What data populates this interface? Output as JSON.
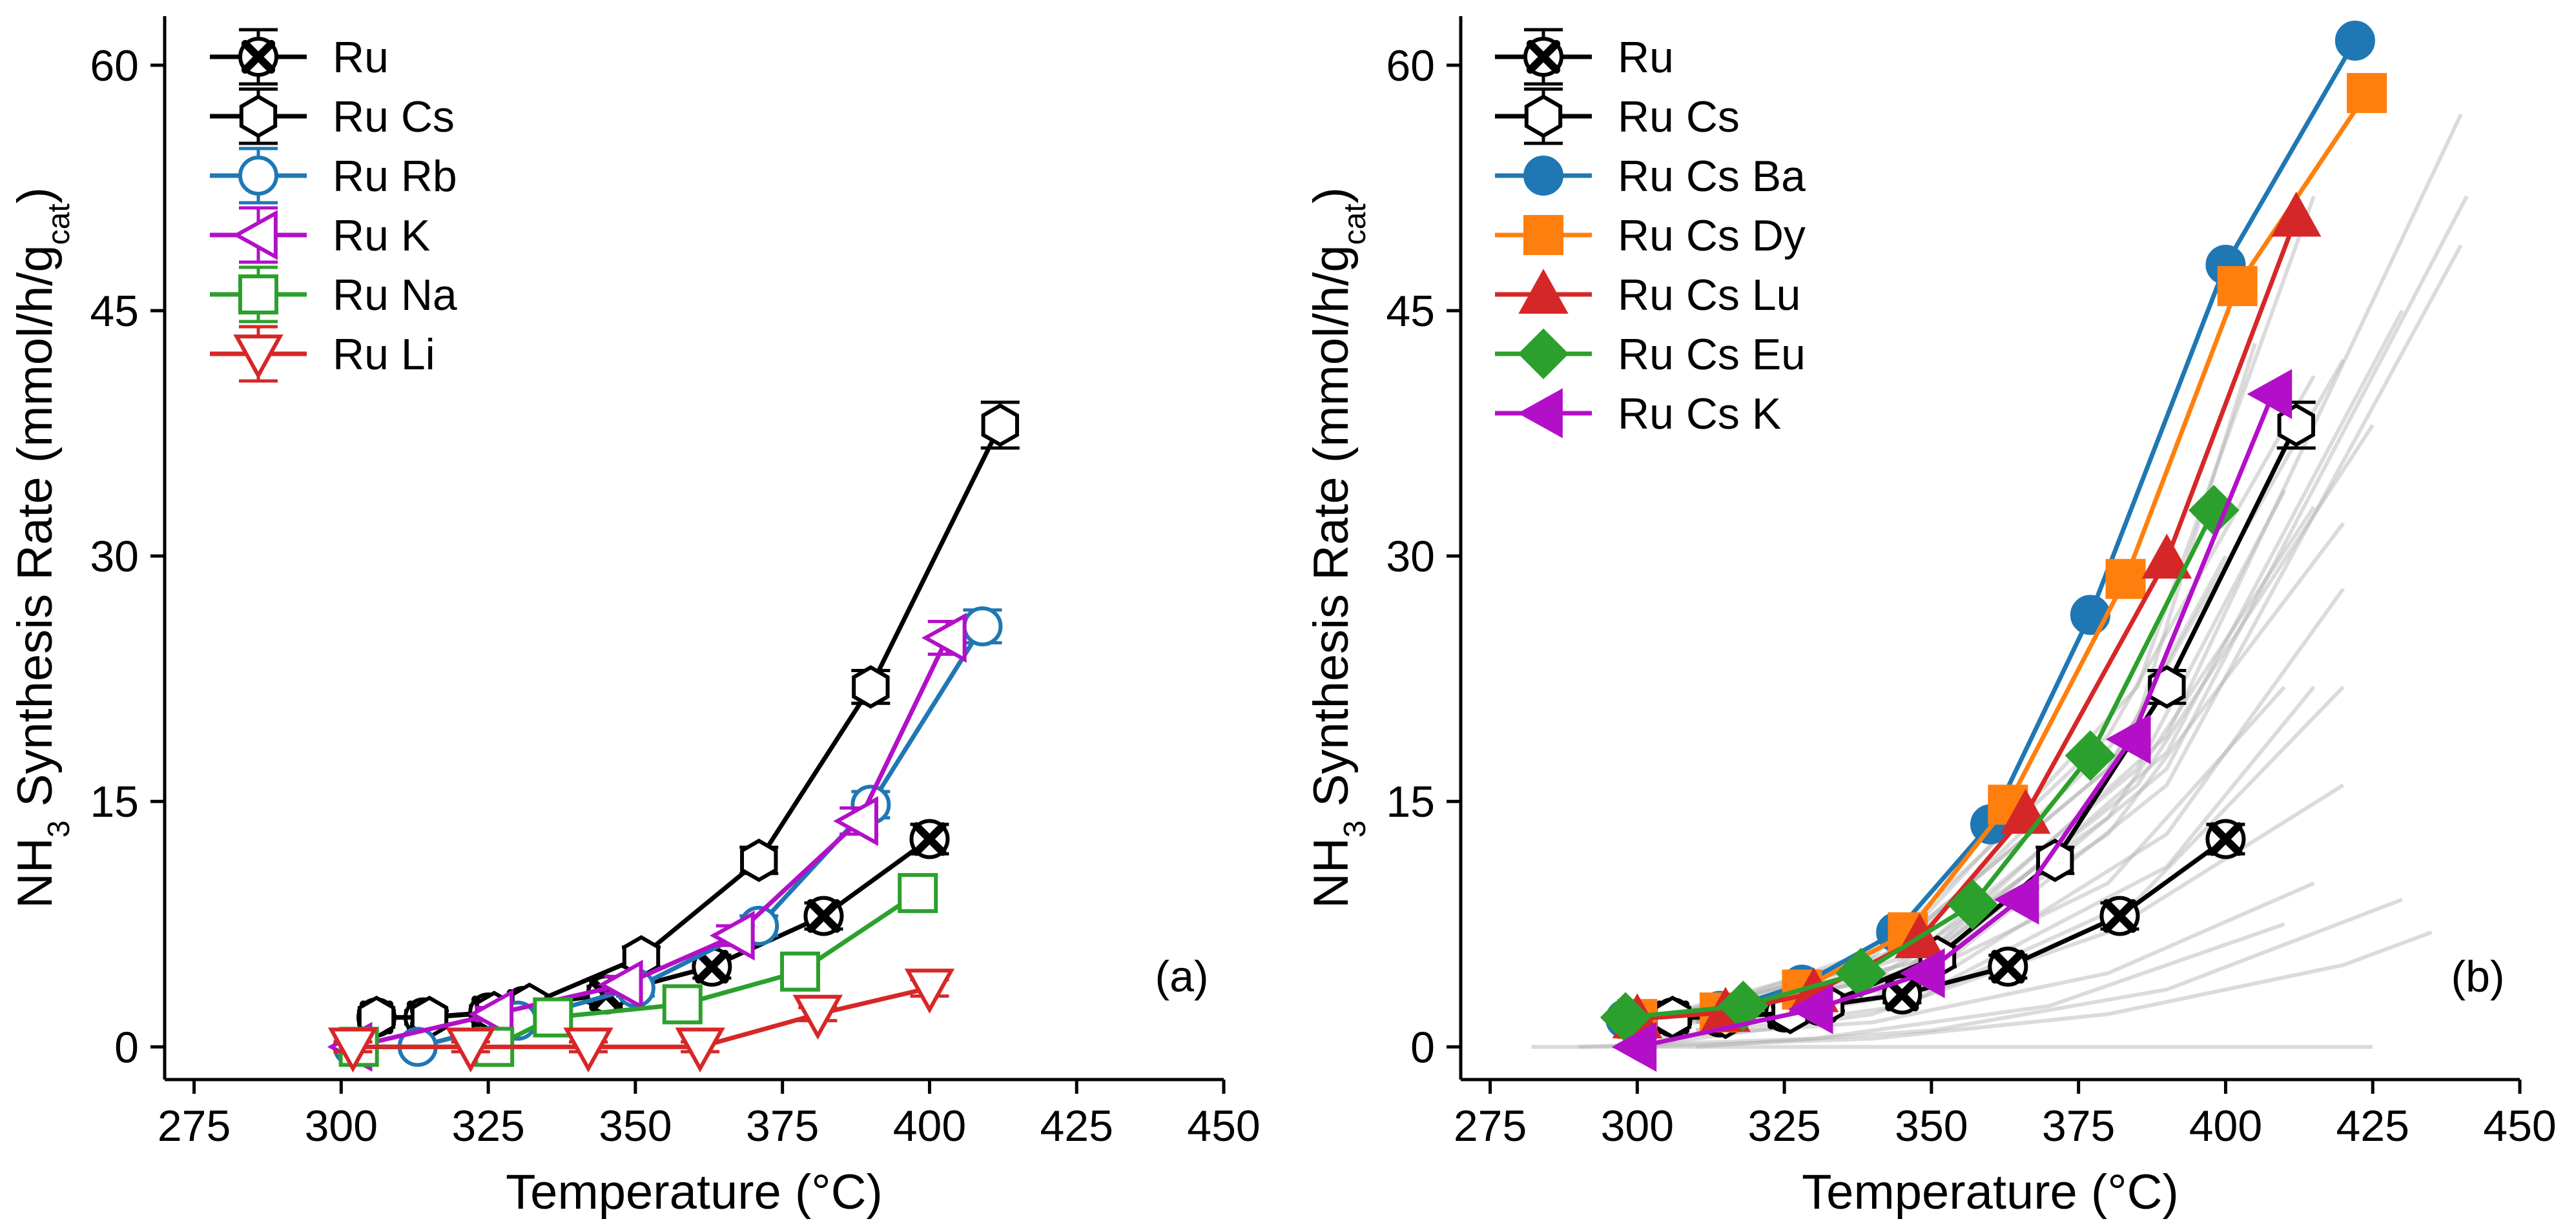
{
  "chart_data": [
    {
      "type": "line",
      "panel_label": "(a)",
      "xlabel": "Temperature (°C)",
      "ylabel": {
        "main": "NH",
        "sub": "3",
        "mid": " Synthesis Rate (mmol/h/g",
        "sub2": "cat",
        "end": ")"
      },
      "xlim": [
        270,
        450
      ],
      "ylim": [
        -2,
        63
      ],
      "xticks": [
        275,
        300,
        325,
        350,
        375,
        400,
        425,
        450
      ],
      "yticks": [
        0,
        15,
        30,
        45,
        60
      ],
      "x_tick_labels": [
        "275",
        "300",
        "325",
        "350",
        "375",
        "400",
        "425",
        "450"
      ],
      "y_tick_labels": [
        "0",
        "15",
        "30",
        "45",
        "60"
      ],
      "legend_position": "top-left",
      "series": [
        {
          "name": "Ru",
          "color": "#000000",
          "marker": "x-circle",
          "filled": false,
          "errorbars": true,
          "x": [
            306,
            314,
            325,
            331,
            345,
            363,
            382,
            400
          ],
          "y": [
            1.8,
            1.8,
            2.1,
            2.5,
            3.2,
            4.9,
            8.0,
            12.7
          ],
          "err": [
            0.4,
            0.4,
            0.4,
            0.4,
            0.5,
            0.7,
            0.8,
            0.9
          ]
        },
        {
          "name": "Ru Cs",
          "color": "#000000",
          "marker": "hexagon",
          "filled": false,
          "errorbars": true,
          "x": [
            306,
            315,
            326,
            332,
            351,
            371,
            390,
            412
          ],
          "y": [
            1.8,
            1.8,
            2.1,
            2.6,
            5.5,
            11.4,
            22.0,
            38.0
          ],
          "err": [
            0.4,
            0.4,
            0.4,
            0.4,
            0.6,
            0.8,
            1.0,
            1.4
          ]
        },
        {
          "name": "Ru Rb",
          "color": "#1f77b4",
          "marker": "circle",
          "filled": false,
          "errorbars": true,
          "x": [
            302,
            313,
            330,
            350,
            371,
            390,
            409
          ],
          "y": [
            0.0,
            0.0,
            1.6,
            3.6,
            7.4,
            14.8,
            25.7
          ],
          "err": [
            0.3,
            0.3,
            0.4,
            0.5,
            0.6,
            0.8,
            1.0
          ]
        },
        {
          "name": "Ru K",
          "color": "#b30fc8",
          "marker": "triangle-left",
          "filled": false,
          "errorbars": true,
          "x": [
            302,
            326,
            348,
            367,
            388,
            403
          ],
          "y": [
            0.0,
            2.0,
            3.8,
            6.8,
            13.8,
            25.0
          ],
          "err": [
            0.3,
            0.4,
            0.5,
            0.6,
            0.8,
            1.0
          ]
        },
        {
          "name": "Ru Na",
          "color": "#2ca02c",
          "marker": "square",
          "filled": false,
          "errorbars": true,
          "x": [
            303,
            326,
            336,
            358,
            378,
            398
          ],
          "y": [
            0.0,
            0.0,
            1.8,
            2.6,
            4.6,
            9.4
          ],
          "err": [
            0.3,
            0.3,
            0.4,
            0.5,
            0.6,
            0.7
          ]
        },
        {
          "name": "Ru Li",
          "color": "#d62728",
          "marker": "triangle-down",
          "filled": false,
          "errorbars": true,
          "x": [
            302,
            322,
            342,
            361,
            381,
            400
          ],
          "y": [
            0.0,
            0.0,
            0.0,
            0.0,
            2.0,
            3.6
          ],
          "err": [
            0.3,
            0.3,
            0.3,
            0.3,
            0.4,
            0.5
          ]
        }
      ]
    },
    {
      "type": "line",
      "panel_label": "(b)",
      "xlabel": "Temperature (°C)",
      "ylabel": {
        "main": "NH",
        "sub": "3",
        "mid": " Synthesis Rate (mmol/h/g",
        "sub2": "cat",
        "end": ")"
      },
      "xlim": [
        270,
        450
      ],
      "ylim": [
        -2,
        63
      ],
      "xticks": [
        275,
        300,
        325,
        350,
        375,
        400,
        425,
        450
      ],
      "yticks": [
        0,
        15,
        30,
        45,
        60
      ],
      "x_tick_labels": [
        "275",
        "300",
        "325",
        "350",
        "375",
        "400",
        "425",
        "450"
      ],
      "y_tick_labels": [
        "0",
        "15",
        "30",
        "45",
        "60"
      ],
      "legend_position": "top-left",
      "background_series_color": "#b0b0b0",
      "background_series": [
        {
          "x": [
            282,
            330,
            380,
            425
          ],
          "y": [
            0,
            0,
            0,
            0
          ]
        },
        {
          "x": [
            290,
            330,
            370,
            410
          ],
          "y": [
            0,
            0.5,
            2.5,
            7.5
          ]
        },
        {
          "x": [
            300,
            340,
            380,
            420,
            435
          ],
          "y": [
            0,
            0.5,
            2,
            5,
            7
          ]
        },
        {
          "x": [
            310,
            350,
            390,
            430
          ],
          "y": [
            0,
            1,
            3.5,
            9
          ]
        },
        {
          "x": [
            300,
            340,
            380,
            415
          ],
          "y": [
            0.5,
            1.5,
            4.5,
            10
          ]
        },
        {
          "x": [
            300,
            340,
            380,
            420
          ],
          "y": [
            0,
            2,
            7,
            16
          ]
        },
        {
          "x": [
            305,
            345,
            385,
            420
          ],
          "y": [
            0.5,
            2.5,
            9,
            22
          ]
        },
        {
          "x": [
            300,
            340,
            380,
            410
          ],
          "y": [
            1,
            3,
            10,
            22
          ]
        },
        {
          "x": [
            300,
            340,
            380,
            420
          ],
          "y": [
            1,
            3.5,
            13,
            32
          ]
        },
        {
          "x": [
            300,
            340,
            380,
            415
          ],
          "y": [
            1.5,
            4,
            14,
            33
          ]
        },
        {
          "x": [
            305,
            345,
            385,
            425
          ],
          "y": [
            1.5,
            4.5,
            16,
            38
          ]
        },
        {
          "x": [
            300,
            340,
            380,
            420
          ],
          "y": [
            1.5,
            5,
            17,
            42
          ]
        },
        {
          "x": [
            300,
            340,
            380,
            415
          ],
          "y": [
            1.5,
            5.5,
            19,
            41
          ]
        },
        {
          "x": [
            310,
            350,
            390,
            430
          ],
          "y": [
            1.5,
            5.5,
            18,
            45
          ]
        },
        {
          "x": [
            310,
            350,
            390,
            440
          ],
          "y": [
            1.5,
            6,
            19,
            57
          ]
        },
        {
          "x": [
            310,
            350,
            390,
            441
          ],
          "y": [
            1.5,
            5,
            17,
            52
          ]
        },
        {
          "x": [
            310,
            350,
            390,
            440
          ],
          "y": [
            1,
            4.5,
            16,
            49
          ]
        },
        {
          "x": [
            305,
            345,
            385,
            410
          ],
          "y": [
            1.5,
            5,
            17,
            34
          ]
        },
        {
          "x": [
            305,
            345,
            385,
            405
          ],
          "y": [
            1.5,
            6,
            20,
            43
          ]
        },
        {
          "x": [
            305,
            345,
            385,
            415
          ],
          "y": [
            1.5,
            6.5,
            22,
            52
          ]
        },
        {
          "x": [
            300,
            340,
            380,
            400
          ],
          "y": [
            1.5,
            5,
            17,
            30
          ]
        },
        {
          "x": [
            310,
            350,
            390,
            420
          ],
          "y": [
            1.5,
            4,
            13,
            28
          ]
        },
        {
          "x": [
            310,
            350,
            390,
            415
          ],
          "y": [
            1,
            3.5,
            11,
            22
          ]
        }
      ],
      "series": [
        {
          "name": "Ru",
          "color": "#000000",
          "marker": "x-circle",
          "filled": false,
          "errorbars": true,
          "x": [
            306,
            314,
            325,
            331,
            345,
            363,
            382,
            400
          ],
          "y": [
            1.8,
            1.8,
            2.1,
            2.5,
            3.2,
            4.9,
            8.0,
            12.7
          ],
          "err": [
            0.4,
            0.4,
            0.4,
            0.4,
            0.5,
            0.7,
            0.8,
            0.9
          ]
        },
        {
          "name": "Ru Cs",
          "color": "#000000",
          "marker": "hexagon",
          "filled": false,
          "errorbars": true,
          "x": [
            306,
            315,
            326,
            332,
            351,
            371,
            390,
            412
          ],
          "y": [
            1.8,
            1.8,
            2.1,
            2.6,
            5.5,
            11.4,
            22.0,
            38.0
          ],
          "err": [
            0.4,
            0.4,
            0.4,
            0.4,
            0.6,
            0.8,
            1.0,
            1.4
          ]
        },
        {
          "name": "Ru Cs Ba",
          "color": "#1f77b4",
          "marker": "circle",
          "filled": true,
          "errorbars": false,
          "x": [
            298,
            314,
            328,
            344,
            360,
            377,
            400,
            422
          ],
          "y": [
            1.7,
            2.2,
            3.8,
            7.0,
            13.6,
            26.4,
            47.8,
            61.5
          ]
        },
        {
          "name": "Ru Cs Dy",
          "color": "#ff7f0e",
          "marker": "square",
          "filled": true,
          "errorbars": false,
          "x": [
            300,
            314,
            328,
            346,
            363,
            383,
            402,
            424
          ],
          "y": [
            1.7,
            2.1,
            3.5,
            7.0,
            14.8,
            28.6,
            46.5,
            58.3
          ]
        },
        {
          "name": "Ru Cs Lu",
          "color": "#d62728",
          "marker": "triangle-up",
          "filled": true,
          "errorbars": false,
          "x": [
            300,
            315,
            330,
            348,
            366,
            390,
            412
          ],
          "y": [
            1.7,
            2.1,
            3.3,
            6.6,
            14.2,
            29.8,
            50.7
          ]
        },
        {
          "name": "Ru Cs Eu",
          "color": "#2ca02c",
          "marker": "diamond",
          "filled": true,
          "errorbars": false,
          "x": [
            298,
            318,
            338,
            357,
            377,
            398
          ],
          "y": [
            1.8,
            2.5,
            4.5,
            8.7,
            17.8,
            32.8
          ]
        },
        {
          "name": "Ru Cs K",
          "color": "#b30fc8",
          "marker": "triangle-left",
          "filled": true,
          "errorbars": false,
          "x": [
            300,
            330,
            349,
            365,
            384,
            408
          ],
          "y": [
            0.0,
            2.3,
            4.5,
            9.0,
            18.8,
            39.9
          ]
        }
      ]
    }
  ]
}
